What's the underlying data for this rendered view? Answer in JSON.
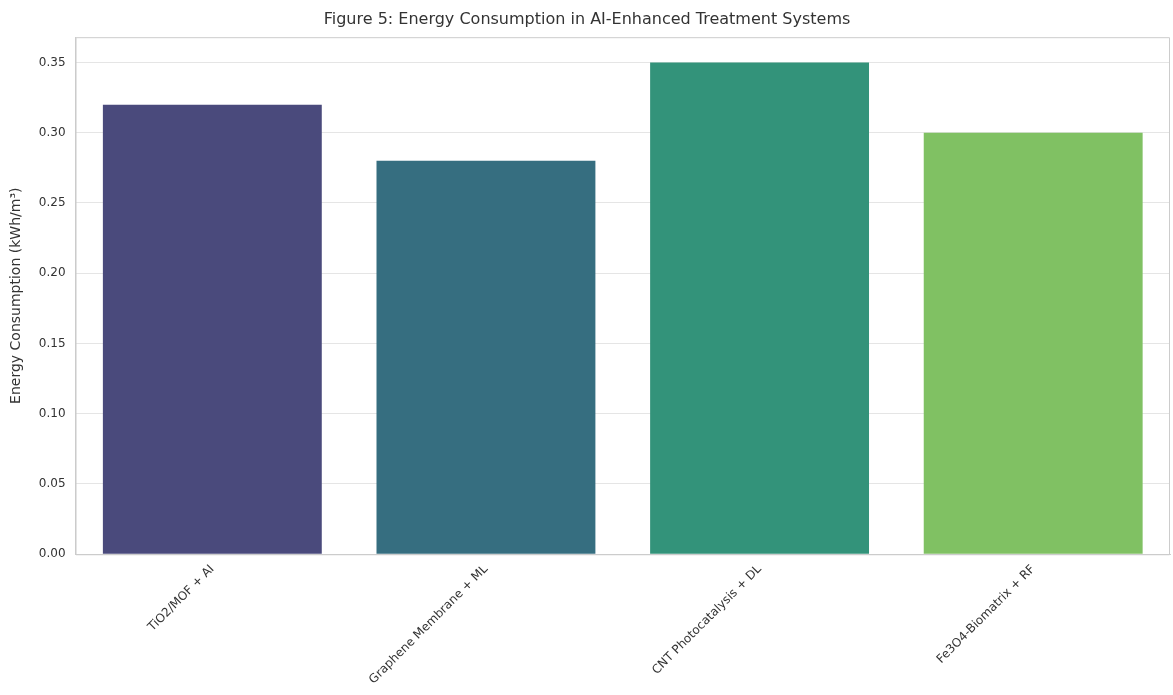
{
  "chart_data": {
    "type": "bar",
    "title": "Figure 5: Energy Consumption in AI-Enhanced Treatment Systems",
    "ylabel": "Energy Consumption (kWh/m³)",
    "categories": [
      "TiO2/MOF + AI",
      "Graphene Membrane + ML",
      "CNT Photocatalysis + DL",
      "Fe3O4-Biomatrix + RF"
    ],
    "values": [
      0.32,
      0.28,
      0.35,
      0.3
    ],
    "colors": [
      "#4a4a7c",
      "#366e80",
      "#33937a",
      "#80c163"
    ],
    "ylim": [
      0,
      0.368
    ],
    "yticks": [
      {
        "value": 0,
        "label": "0.00"
      },
      {
        "value": 0.05,
        "label": "0.05"
      },
      {
        "value": 0.1,
        "label": "0.10"
      },
      {
        "value": 0.15,
        "label": "0.15"
      },
      {
        "value": 0.2,
        "label": "0.20"
      },
      {
        "value": 0.25,
        "label": "0.25"
      },
      {
        "value": 0.3,
        "label": "0.30"
      },
      {
        "value": 0.35,
        "label": "0.35"
      }
    ],
    "grid": "y",
    "legend": false
  }
}
